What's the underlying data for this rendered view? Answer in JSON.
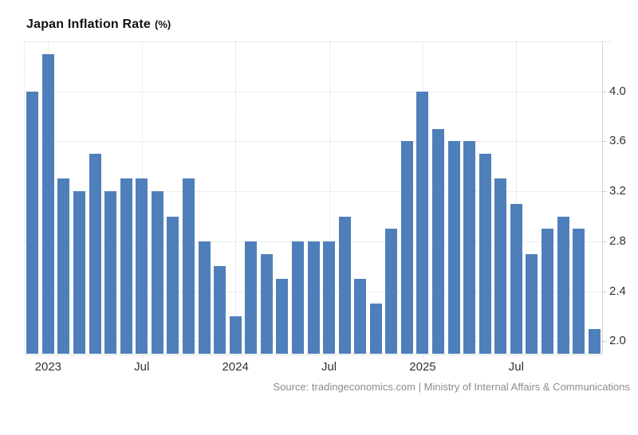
{
  "chart_data": {
    "type": "bar",
    "title": "Japan Inflation Rate",
    "title_unit": "(%)",
    "source": "Source: tradingeconomics.com | Ministry of Internal Affairs & Communications",
    "bar_color": "#4f7fba",
    "grid": "dotted",
    "legend": "none",
    "ylim": [
      1.9,
      4.4
    ],
    "yticks": [
      2.0,
      2.4,
      2.8,
      3.2,
      3.6,
      4.0
    ],
    "ytick_side": "right",
    "xticks": [
      {
        "index": 1,
        "label": "2023"
      },
      {
        "index": 7,
        "label": "Jul"
      },
      {
        "index": 13,
        "label": "2024"
      },
      {
        "index": 19,
        "label": "Jul"
      },
      {
        "index": 25,
        "label": "2025"
      },
      {
        "index": 31,
        "label": "Jul"
      }
    ],
    "categories": [
      "Dec 2022",
      "Jan 2023",
      "Feb 2023",
      "Mar 2023",
      "Apr 2023",
      "May 2023",
      "Jun 2023",
      "Jul 2023",
      "Aug 2023",
      "Sep 2023",
      "Oct 2023",
      "Nov 2023",
      "Dec 2023",
      "Jan 2024",
      "Feb 2024",
      "Mar 2024",
      "Apr 2024",
      "May 2024",
      "Jun 2024",
      "Jul 2024",
      "Aug 2024",
      "Sep 2024",
      "Oct 2024",
      "Nov 2024",
      "Dec 2024",
      "Jan 2025",
      "Feb 2025",
      "Mar 2025",
      "Apr 2025",
      "May 2025",
      "Jun 2025",
      "Jul 2025",
      "Aug 2025",
      "Sep 2025",
      "Oct 2025",
      "Nov 2025",
      "Dec 2025"
    ],
    "values": [
      4.0,
      4.3,
      3.3,
      3.2,
      3.5,
      3.2,
      3.3,
      3.3,
      3.2,
      3.0,
      3.3,
      2.8,
      2.6,
      2.2,
      2.8,
      2.7,
      2.5,
      2.8,
      2.8,
      2.8,
      3.0,
      2.5,
      2.3,
      2.9,
      3.6,
      4.0,
      3.7,
      3.6,
      3.6,
      3.5,
      3.3,
      3.1,
      2.7,
      2.9,
      3.0,
      2.9,
      2.1
    ]
  }
}
